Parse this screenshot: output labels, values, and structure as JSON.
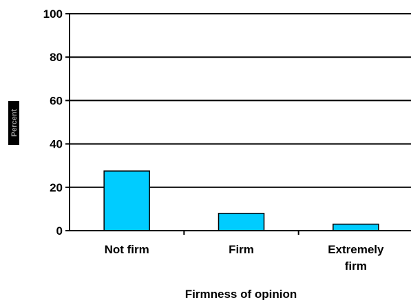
{
  "chart_data": {
    "type": "bar",
    "categories": [
      [
        "Not firm"
      ],
      [
        "Firm"
      ],
      [
        "Extremely",
        "firm"
      ]
    ],
    "values": [
      27.5,
      8,
      3
    ],
    "xlabel": "Firmness of opinion",
    "ylabel": "Percent",
    "ylim": [
      0,
      100
    ],
    "yticks": [
      0,
      20,
      40,
      60,
      80,
      100
    ],
    "grid": true,
    "bar_color": "#00ccff",
    "bar_edge_color": "#000000"
  }
}
